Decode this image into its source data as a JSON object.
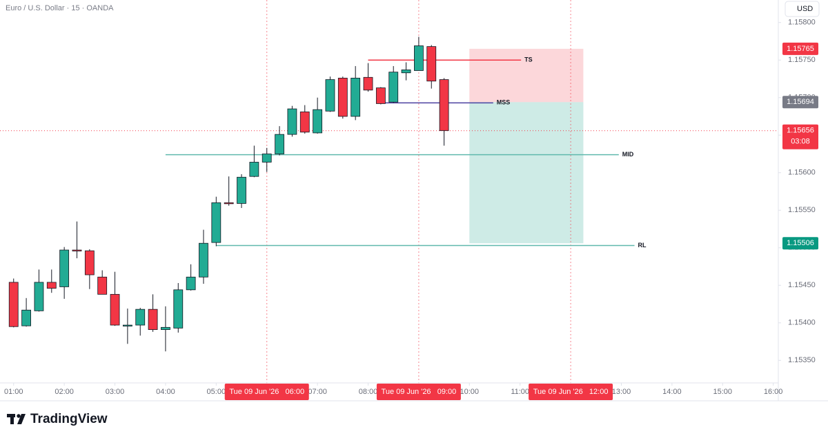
{
  "chart_data": {
    "type": "candlestick",
    "title": "Euro / U.S. Dollar · 15 · OANDA",
    "currency": "USD",
    "up_color": "#22ab94",
    "down_color": "#f23645",
    "x": [
      1,
      1.25,
      1.5,
      1.75,
      2,
      2.25,
      2.5,
      2.75,
      3,
      3.25,
      3.5,
      3.75,
      4,
      4.25,
      4.5,
      4.75,
      5,
      5.25,
      5.5,
      5.75,
      6,
      6.25,
      6.5,
      6.75,
      7,
      7.25,
      7.5,
      7.75,
      8,
      8.25,
      8.5,
      8.75,
      9,
      9.25,
      9.5
    ],
    "open": [
      1.15454,
      1.15396,
      1.15416,
      1.15454,
      1.15448,
      1.15497,
      1.15496,
      1.15461,
      1.15438,
      1.15397,
      1.15397,
      1.15418,
      1.15391,
      1.15393,
      1.15444,
      1.15461,
      1.15507,
      1.1556,
      1.15559,
      1.15595,
      1.15614,
      1.15625,
      1.15651,
      1.15681,
      1.15653,
      1.15682,
      1.15726,
      1.15675,
      1.15727,
      1.15713,
      1.15694,
      1.15733,
      1.15736,
      1.15768,
      1.15724
    ],
    "high": [
      1.15459,
      1.15433,
      1.15471,
      1.15471,
      1.15501,
      1.15535,
      1.15498,
      1.1547,
      1.15468,
      1.15419,
      1.1542,
      1.15438,
      1.15422,
      1.15453,
      1.15478,
      1.15524,
      1.15568,
      1.15595,
      1.15598,
      1.15636,
      1.15633,
      1.15662,
      1.15689,
      1.1569,
      1.157,
      1.15728,
      1.15728,
      1.15742,
      1.15746,
      1.15714,
      1.15742,
      1.15747,
      1.15781,
      1.1577,
      1.15726
    ],
    "low": [
      1.15394,
      1.15395,
      1.15415,
      1.1544,
      1.15432,
      1.15486,
      1.15445,
      1.15438,
      1.15396,
      1.15372,
      1.15383,
      1.15388,
      1.15362,
      1.15387,
      1.15443,
      1.15452,
      1.15502,
      1.15556,
      1.15553,
      1.15594,
      1.15601,
      1.15623,
      1.15648,
      1.15652,
      1.15652,
      1.15681,
      1.15672,
      1.1567,
      1.15708,
      1.15691,
      1.15693,
      1.15723,
      1.15736,
      1.15712,
      1.15636
    ],
    "close": [
      1.15395,
      1.15417,
      1.15454,
      1.15446,
      1.15497,
      1.15496,
      1.15464,
      1.15438,
      1.15397,
      1.15397,
      1.15418,
      1.15391,
      1.15394,
      1.15444,
      1.15461,
      1.15506,
      1.1556,
      1.15559,
      1.15594,
      1.15614,
      1.15625,
      1.15651,
      1.15685,
      1.15654,
      1.15684,
      1.15724,
      1.15675,
      1.15726,
      1.1571,
      1.15692,
      1.15734,
      1.15737,
      1.15769,
      1.15722,
      1.15656
    ],
    "countdown": "03:08",
    "xlim": [
      0.84,
      16.1
    ],
    "xticks": [
      {
        "value": 1,
        "label": "01:00"
      },
      {
        "value": 2,
        "label": "02:00"
      },
      {
        "value": 3,
        "label": "03:00"
      },
      {
        "value": 4,
        "label": "04:00"
      },
      {
        "value": 5,
        "label": "05:00"
      },
      {
        "value": 6,
        "label": "06:00"
      },
      {
        "value": 7,
        "label": "07:00"
      },
      {
        "value": 8,
        "label": "08:00"
      },
      {
        "value": 9,
        "label": "09:00"
      },
      {
        "value": 10,
        "label": "10:00"
      },
      {
        "value": 11,
        "label": "11:00"
      },
      {
        "value": 12,
        "label": "12:00"
      },
      {
        "value": 13,
        "label": "13:00"
      },
      {
        "value": 14,
        "label": "14:00"
      },
      {
        "value": 15,
        "label": "15:00"
      },
      {
        "value": 16,
        "label": "16:00"
      }
    ],
    "ylim": [
      1.1532,
      1.1583
    ],
    "yticks": [
      {
        "value": 1.1535,
        "label": "1.15350"
      },
      {
        "value": 1.154,
        "label": "1.15400"
      },
      {
        "value": 1.1545,
        "label": "1.15450"
      },
      {
        "value": 1.155,
        "label": "1.15500"
      },
      {
        "value": 1.1555,
        "label": "1.15550"
      },
      {
        "value": 1.156,
        "label": "1.15600"
      },
      {
        "value": 1.1565,
        "label": "1.15650"
      },
      {
        "value": 1.157,
        "label": "1.15700"
      },
      {
        "value": 1.1575,
        "label": "1.15750"
      },
      {
        "value": 1.158,
        "label": "1.15800"
      }
    ],
    "grid": false,
    "date_labels": [
      {
        "value": 6,
        "label": "Tue 09 Jun '26   06:00"
      },
      {
        "value": 9,
        "label": "Tue 09 Jun '26   09:00"
      },
      {
        "value": 12,
        "label": "Tue 09 Jun '26   12:00"
      }
    ],
    "levels": [
      {
        "name": "TS",
        "value": 1.1575,
        "x": [
          8,
          11.02
        ],
        "color": "#f23645"
      },
      {
        "name": "MSS",
        "value": 1.15693,
        "x": [
          8.25,
          10.47
        ],
        "color": "#4a3f9f"
      },
      {
        "name": "MID",
        "value": 1.15624,
        "x": [
          4,
          12.95
        ],
        "color": "#5fb8ad"
      },
      {
        "name": "RL",
        "value": 1.15503,
        "x": [
          5,
          13.26
        ],
        "color": "#5fb8ad"
      }
    ],
    "position": {
      "x": [
        10,
        12.25
      ],
      "stop": 1.15765,
      "entry": 1.15694,
      "target": 1.15506,
      "stop_color": "#f23645",
      "entry_color": "#787b86",
      "target_color": "#089981"
    }
  },
  "brand": "TradingView"
}
